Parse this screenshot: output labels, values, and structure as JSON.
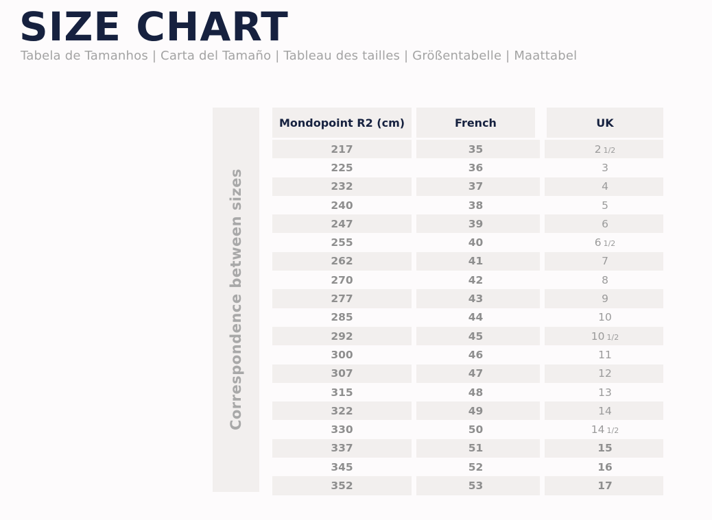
{
  "title": "SIZE CHART",
  "subtitle": "Tabela de Tamanhos | Carta del Tamaño | Tableau des tailles | Größentabelle | Maattabel",
  "side_label": "Correspondence between sizes",
  "headers": [
    "Mondopoint R2 (cm)",
    "French",
    "UK"
  ],
  "rows": [
    {
      "mondo": "217",
      "french": "35",
      "uk": "2",
      "uk_frac": "1/2",
      "uk_bold": false
    },
    {
      "mondo": "225",
      "french": "36",
      "uk": "3",
      "uk_frac": "",
      "uk_bold": false
    },
    {
      "mondo": "232",
      "french": "37",
      "uk": "4",
      "uk_frac": "",
      "uk_bold": false
    },
    {
      "mondo": "240",
      "french": "38",
      "uk": "5",
      "uk_frac": "",
      "uk_bold": false
    },
    {
      "mondo": "247",
      "french": "39",
      "uk": "6",
      "uk_frac": "",
      "uk_bold": false
    },
    {
      "mondo": "255",
      "french": "40",
      "uk": "6",
      "uk_frac": "1/2",
      "uk_bold": false
    },
    {
      "mondo": "262",
      "french": "41",
      "uk": "7",
      "uk_frac": "",
      "uk_bold": false
    },
    {
      "mondo": "270",
      "french": "42",
      "uk": "8",
      "uk_frac": "",
      "uk_bold": false
    },
    {
      "mondo": "277",
      "french": "43",
      "uk": "9",
      "uk_frac": "",
      "uk_bold": false
    },
    {
      "mondo": "285",
      "french": "44",
      "uk": "10",
      "uk_frac": "",
      "uk_bold": false
    },
    {
      "mondo": "292",
      "french": "45",
      "uk": "10",
      "uk_frac": "1/2",
      "uk_bold": false
    },
    {
      "mondo": "300",
      "french": "46",
      "uk": "11",
      "uk_frac": "",
      "uk_bold": false
    },
    {
      "mondo": "307",
      "french": "47",
      "uk": "12",
      "uk_frac": "",
      "uk_bold": false
    },
    {
      "mondo": "315",
      "french": "48",
      "uk": "13",
      "uk_frac": "",
      "uk_bold": false
    },
    {
      "mondo": "322",
      "french": "49",
      "uk": "14",
      "uk_frac": "",
      "uk_bold": false
    },
    {
      "mondo": "330",
      "french": "50",
      "uk": "14",
      "uk_frac": "1/2",
      "uk_bold": false
    },
    {
      "mondo": "337",
      "french": "51",
      "uk": "15",
      "uk_frac": "",
      "uk_bold": true
    },
    {
      "mondo": "345",
      "french": "52",
      "uk": "16",
      "uk_frac": "",
      "uk_bold": true
    },
    {
      "mondo": "352",
      "french": "53",
      "uk": "17",
      "uk_frac": "",
      "uk_bold": true
    }
  ],
  "colors": {
    "title": "#16213f",
    "band": "#f2efee",
    "value_text": "#8e8e8e"
  }
}
